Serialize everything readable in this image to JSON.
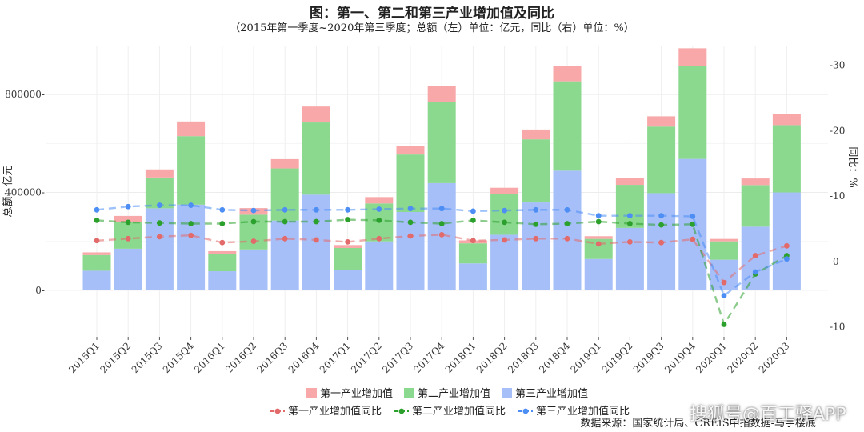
{
  "chart_data": {
    "type": "bar",
    "stacked": true,
    "title": "图：第一、第二和第三产业增加值及同比",
    "subtitle": "（2015年第一季度~2020年第三季度；总额（左）单位：亿元，同比（右）单位：%）",
    "ylabel_left": "总额：亿元",
    "ylabel_right": "同比：%",
    "categories": [
      "2015Q1",
      "2015Q2",
      "2015Q3",
      "2015Q4",
      "2016Q1",
      "2016Q2",
      "2016Q3",
      "2016Q4",
      "2017Q1",
      "2017Q2",
      "2017Q3",
      "2017Q4",
      "2018Q1",
      "2018Q2",
      "2018Q3",
      "2018Q4",
      "2019Q1",
      "2019Q2",
      "2019Q3",
      "2019Q4",
      "2020Q1",
      "2020Q2",
      "2020Q3"
    ],
    "ylim_left": [
      -190000,
      1000000
    ],
    "yticks_left": [
      0,
      400000,
      800000
    ],
    "ytick_labels_left": [
      "0-",
      "400000-",
      "800000-"
    ],
    "ylim_right": [
      -11.5,
      33
    ],
    "yticks_right": [
      -10,
      0,
      10,
      20,
      30
    ],
    "ytick_labels_right": [
      "-10",
      "-0",
      "-10",
      "-20",
      "-30"
    ],
    "grid": true,
    "legend_position": "bottom",
    "bar_series": [
      {
        "name": "第一产业增加值",
        "color": "#f8a8a8",
        "values": [
          11000,
          26000,
          33000,
          60000,
          12000,
          27000,
          38000,
          65000,
          12000,
          26000,
          35000,
          63000,
          12000,
          27000,
          40000,
          63000,
          11000,
          27000,
          42000,
          72000,
          10000,
          27000,
          47000
        ]
      },
      {
        "name": "第二产业增加值",
        "color": "#8bd88f",
        "values": [
          64000,
          108000,
          126000,
          280000,
          70000,
          142000,
          213000,
          295000,
          90000,
          155000,
          235000,
          333000,
          82000,
          165000,
          258000,
          365000,
          82000,
          176000,
          272000,
          380000,
          75000,
          170000,
          275000
        ]
      },
      {
        "name": "第三产业增加值",
        "color": "#a6bff8",
        "values": [
          80000,
          170000,
          335000,
          350000,
          78000,
          167000,
          285000,
          391000,
          83000,
          200000,
          320000,
          438000,
          110000,
          227000,
          359000,
          489000,
          128000,
          255000,
          397000,
          537000,
          125000,
          260000,
          400000
        ]
      }
    ],
    "line_series": [
      {
        "name": "第一产业增加值同比",
        "color": "#e36a6a",
        "values": [
          3.2,
          3.5,
          3.8,
          4.0,
          2.9,
          3.1,
          3.5,
          3.3,
          3.0,
          3.5,
          3.9,
          4.1,
          3.2,
          3.3,
          3.5,
          3.5,
          2.7,
          3.0,
          2.9,
          3.4,
          -3.2,
          0.9,
          2.4
        ]
      },
      {
        "name": "第二产业增加值同比",
        "color": "#2ca02c",
        "values": [
          6.3,
          6.0,
          5.9,
          5.8,
          5.8,
          6.1,
          6.1,
          6.1,
          6.4,
          6.3,
          6.0,
          5.8,
          6.3,
          6.0,
          5.7,
          5.8,
          6.1,
          5.8,
          5.6,
          5.7,
          -9.6,
          -1.9,
          0.9
        ]
      },
      {
        "name": "第三产业增加值同比",
        "color": "#4d8ef5",
        "values": [
          7.9,
          8.4,
          8.6,
          8.6,
          7.9,
          7.8,
          7.9,
          7.9,
          7.9,
          8.0,
          8.1,
          8.1,
          7.7,
          7.8,
          7.9,
          7.9,
          7.0,
          7.0,
          7.0,
          6.9,
          -5.2,
          -1.6,
          0.4
        ]
      }
    ]
  },
  "source_text": "数据来源：国家统计局、CREIS中指数据-马宇楼底",
  "watermark_text": "搜狐号@百工驿APP"
}
